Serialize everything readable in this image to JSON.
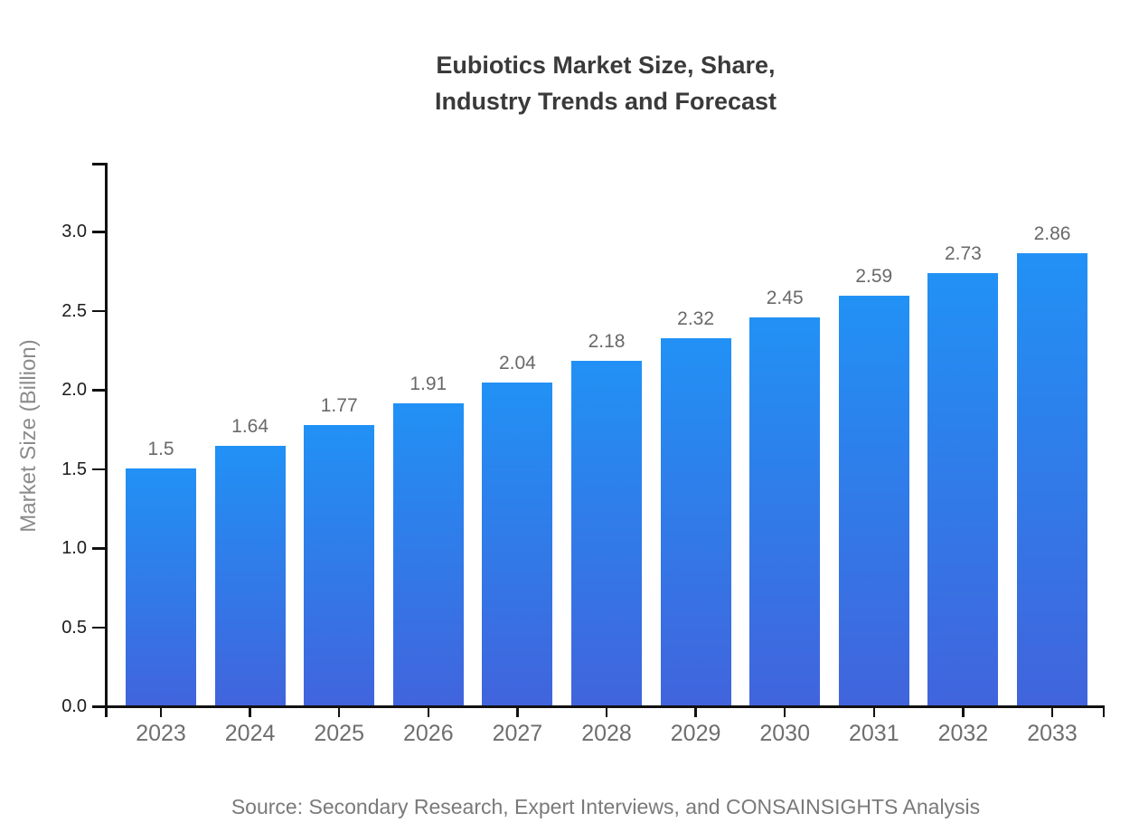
{
  "title_lines": [
    "Eubiotics Market Size, Share,",
    "Industry Trends and Forecast"
  ],
  "source_note": "Source: Secondary Research, Expert Interviews, and CONSAINSIGHTS Analysis",
  "chart_data": {
    "type": "bar",
    "title": "Eubiotics Market Size, Share, Industry Trends and Forecast",
    "categories": [
      "2023",
      "2024",
      "2025",
      "2026",
      "2027",
      "2028",
      "2029",
      "2030",
      "2031",
      "2032",
      "2033"
    ],
    "values": [
      1.5,
      1.64,
      1.77,
      1.91,
      2.04,
      2.18,
      2.32,
      2.45,
      2.59,
      2.73,
      2.86
    ],
    "value_labels": [
      "1.5",
      "1.64",
      "1.77",
      "1.91",
      "2.04",
      "2.18",
      "2.32",
      "2.45",
      "2.59",
      "2.73",
      "2.86"
    ],
    "xlabel": "",
    "ylabel": "Market Size (Billion)",
    "ylim": [
      0.0,
      3.44
    ],
    "yticks": [
      0.0,
      0.5,
      1.0,
      1.5,
      2.0,
      2.5,
      3.0
    ],
    "ytick_labels": [
      "0.0",
      "0.5",
      "1.0",
      "1.5",
      "2.0",
      "2.5",
      "3.0"
    ],
    "grid": false,
    "legend": "none",
    "colors": {
      "bar_gradient_top": "#2191f5",
      "bar_gradient_bottom": "#4164dc",
      "axis": "#111111",
      "title_text": "#3a3a3a",
      "tick_label_text": "#1c1c1c",
      "category_label_text": "#6e6e6e",
      "value_label_text": "#696969",
      "axis_title_text": "#8c8c8c",
      "source_text": "#7a7a7a",
      "background": "#ffffff"
    }
  }
}
